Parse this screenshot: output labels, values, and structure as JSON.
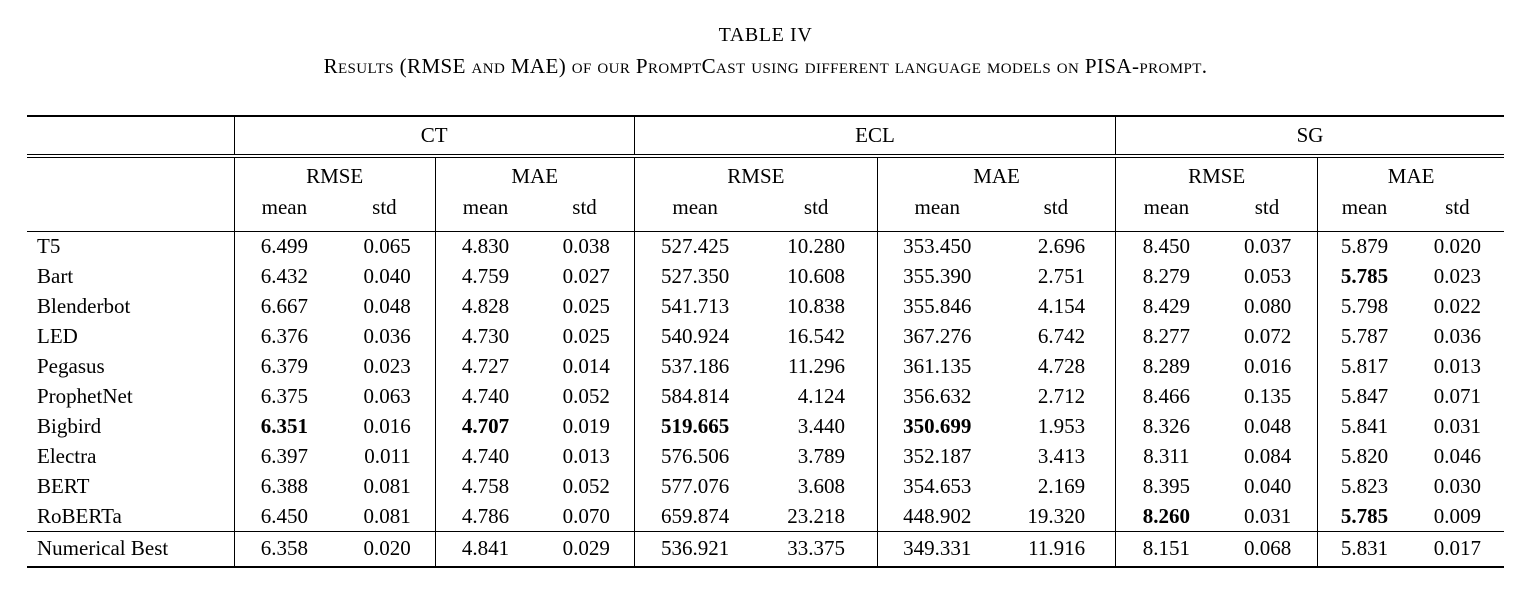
{
  "page": {
    "background": "#ffffff",
    "text_color": "#000000"
  },
  "title": {
    "label": "TABLE IV",
    "caption": "Results (RMSE and MAE) of our PromptCast using different language models on PISA-prompt."
  },
  "table": {
    "groups": [
      {
        "label": "CT"
      },
      {
        "label": "ECL"
      },
      {
        "label": "SG"
      }
    ],
    "metrics": [
      "RMSE",
      "MAE"
    ],
    "submetrics": [
      "mean",
      "std"
    ],
    "columns_per_group": [
      "RMSE mean",
      "RMSE std",
      "MAE mean",
      "MAE std"
    ],
    "rows": [
      {
        "model": "T5",
        "values": [
          "6.499",
          "0.065",
          "4.830",
          "0.038",
          "527.425",
          "10.280",
          "353.450",
          "2.696",
          "8.450",
          "0.037",
          "5.879",
          "0.020"
        ],
        "bold": []
      },
      {
        "model": "Bart",
        "values": [
          "6.432",
          "0.040",
          "4.759",
          "0.027",
          "527.350",
          "10.608",
          "355.390",
          "2.751",
          "8.279",
          "0.053",
          "5.785",
          "0.023"
        ],
        "bold": [
          10
        ]
      },
      {
        "model": "Blenderbot",
        "values": [
          "6.667",
          "0.048",
          "4.828",
          "0.025",
          "541.713",
          "10.838",
          "355.846",
          "4.154",
          "8.429",
          "0.080",
          "5.798",
          "0.022"
        ],
        "bold": []
      },
      {
        "model": "LED",
        "values": [
          "6.376",
          "0.036",
          "4.730",
          "0.025",
          "540.924",
          "16.542",
          "367.276",
          "6.742",
          "8.277",
          "0.072",
          "5.787",
          "0.036"
        ],
        "bold": []
      },
      {
        "model": "Pegasus",
        "values": [
          "6.379",
          "0.023",
          "4.727",
          "0.014",
          "537.186",
          "11.296",
          "361.135",
          "4.728",
          "8.289",
          "0.016",
          "5.817",
          "0.013"
        ],
        "bold": []
      },
      {
        "model": "ProphetNet",
        "values": [
          "6.375",
          "0.063",
          "4.740",
          "0.052",
          "584.814",
          "4.124",
          "356.632",
          "2.712",
          "8.466",
          "0.135",
          "5.847",
          "0.071"
        ],
        "bold": []
      },
      {
        "model": "Bigbird",
        "values": [
          "6.351",
          "0.016",
          "4.707",
          "0.019",
          "519.665",
          "3.440",
          "350.699",
          "1.953",
          "8.326",
          "0.048",
          "5.841",
          "0.031"
        ],
        "bold": [
          0,
          2,
          4,
          6
        ]
      },
      {
        "model": "Electra",
        "values": [
          "6.397",
          "0.011",
          "4.740",
          "0.013",
          "576.506",
          "3.789",
          "352.187",
          "3.413",
          "8.311",
          "0.084",
          "5.820",
          "0.046"
        ],
        "bold": []
      },
      {
        "model": "BERT",
        "values": [
          "6.388",
          "0.081",
          "4.758",
          "0.052",
          "577.076",
          "3.608",
          "354.653",
          "2.169",
          "8.395",
          "0.040",
          "5.823",
          "0.030"
        ],
        "bold": []
      },
      {
        "model": "RoBERTa",
        "values": [
          "6.450",
          "0.081",
          "4.786",
          "0.070",
          "659.874",
          "23.218",
          "448.902",
          "19.320",
          "8.260",
          "0.031",
          "5.785",
          "0.009"
        ],
        "bold": [
          8,
          10
        ]
      },
      {
        "model": "Numerical Best",
        "values": [
          "6.358",
          "0.020",
          "4.841",
          "0.029",
          "536.921",
          "33.375",
          "349.331",
          "11.916",
          "8.151",
          "0.068",
          "5.831",
          "0.017"
        ],
        "bold": [],
        "summary": true
      }
    ]
  }
}
